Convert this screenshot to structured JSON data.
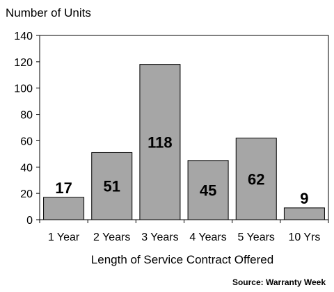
{
  "chart_data": {
    "type": "bar",
    "categories": [
      "1 Year",
      "2 Years",
      "3 Years",
      "4 Years",
      "5 Years",
      "10 Yrs"
    ],
    "values": [
      17,
      51,
      118,
      45,
      62,
      9
    ],
    "data_labels": [
      "17",
      "51",
      "118",
      "45",
      "62",
      "9"
    ],
    "ylabel": "Number of Units",
    "xlabel": "Length of Service Contract Offered",
    "ylim": [
      0,
      140
    ],
    "yticks": [
      0,
      20,
      40,
      60,
      80,
      100,
      120,
      140
    ],
    "grid": false,
    "legend": "none",
    "bar_color": "#a6a6a6",
    "bar_edge_color": "#000000"
  },
  "source": "Source: Warranty Week"
}
